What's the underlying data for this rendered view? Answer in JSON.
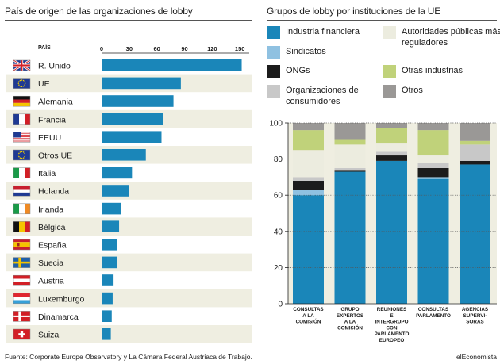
{
  "left_panel": {
    "title": "País de origen de las organizaciones de lobby",
    "column_header": "PAÍS"
  },
  "right_panel": {
    "title": "Grupos de lobby por instituciones de la UE"
  },
  "footer": {
    "source": "Fuente: Corporate Europe Observatory y La Cámara Federal Austriaca de Trabajo.",
    "brand": "elEconomista"
  },
  "colors": {
    "industria_financiera": "#1a86b9",
    "sindicatos": "#8fc1e1",
    "ongs": "#1c1c1c",
    "organizaciones_consumidores": "#c8c8c8",
    "autoridades_publicas": "#ececdf",
    "otras_industrias": "#c0d27a",
    "otros": "#9a9896",
    "row_shade": "#efeee1"
  },
  "chart_data": [
    {
      "type": "bar",
      "orientation": "horizontal",
      "title": "País de origen de las organizaciones de lobby",
      "categories": [
        "R. Unido",
        "UE",
        "Alemania",
        "Francia",
        "EEUU",
        "Otros UE",
        "Italia",
        "Holanda",
        "Irlanda",
        "Bélgica",
        "España",
        "Suecia",
        "Austria",
        "Luxemburgo",
        "Dinamarca",
        "Suiza"
      ],
      "flags": [
        "uk-flag",
        "eu-flag",
        "germany-flag",
        "france-flag",
        "usa-flag",
        "eu-flag",
        "italy-flag",
        "netherlands-flag",
        "ireland-flag",
        "belgium-flag",
        "spain-flag",
        "sweden-flag",
        "austria-flag",
        "luxembourg-flag",
        "denmark-flag",
        "switzerland-flag"
      ],
      "values": [
        152,
        86,
        78,
        67,
        65,
        48,
        33,
        30,
        21,
        19,
        17,
        17,
        13,
        12,
        11,
        10
      ],
      "xlim": [
        0,
        155
      ],
      "ticks": [
        "0",
        "30",
        "60",
        "90",
        "120",
        "150"
      ],
      "tick_values": [
        0,
        30,
        60,
        90,
        120,
        150
      ]
    },
    {
      "type": "bar",
      "stacked": true,
      "title": "Grupos de lobby por instituciones de la UE",
      "categories": [
        [
          "CONSULTAS",
          "A LA",
          "COMISIÓN"
        ],
        [
          "GRUPO",
          "EXPERTOS",
          "A LA",
          "COMISIÓN"
        ],
        [
          "REUNIONES",
          "E",
          "INTERGRUPO",
          "CON",
          "PARLAMENTO",
          "EUROPEO"
        ],
        [
          "CONSULTAS",
          "PARLAMENTO"
        ],
        [
          "AGENCIAS",
          "SUPERVI-",
          "SORAS"
        ]
      ],
      "ylim": [
        0,
        100
      ],
      "yticks": [
        "0",
        "20",
        "40",
        "60",
        "80",
        "100"
      ],
      "ytick_values": [
        0,
        20,
        40,
        60,
        80,
        100
      ],
      "series": [
        {
          "name": "Industria financiera",
          "color_key": "industria_financiera",
          "values": [
            60,
            73,
            79,
            69,
            77
          ]
        },
        {
          "name": "Sindicatos",
          "color_key": "sindicatos",
          "values": [
            3,
            0,
            0,
            1,
            0
          ]
        },
        {
          "name": "ONGs",
          "color_key": "ongs",
          "values": [
            5,
            1,
            3,
            5,
            2
          ]
        },
        {
          "name": "Organizaciones de consumidores",
          "color_key": "organizaciones_consumidores",
          "values": [
            2,
            1,
            2,
            3,
            9
          ]
        },
        {
          "name": "Autoridades públicas más reguladores",
          "color_key": "autoridades_publicas",
          "values": [
            15,
            13,
            5,
            4,
            0
          ]
        },
        {
          "name": "Otras industrias",
          "color_key": "otras_industrias",
          "values": [
            11,
            3,
            8,
            14,
            2
          ]
        },
        {
          "name": "Otros",
          "color_key": "otros",
          "values": [
            4,
            9,
            3,
            4,
            10
          ]
        }
      ]
    }
  ]
}
